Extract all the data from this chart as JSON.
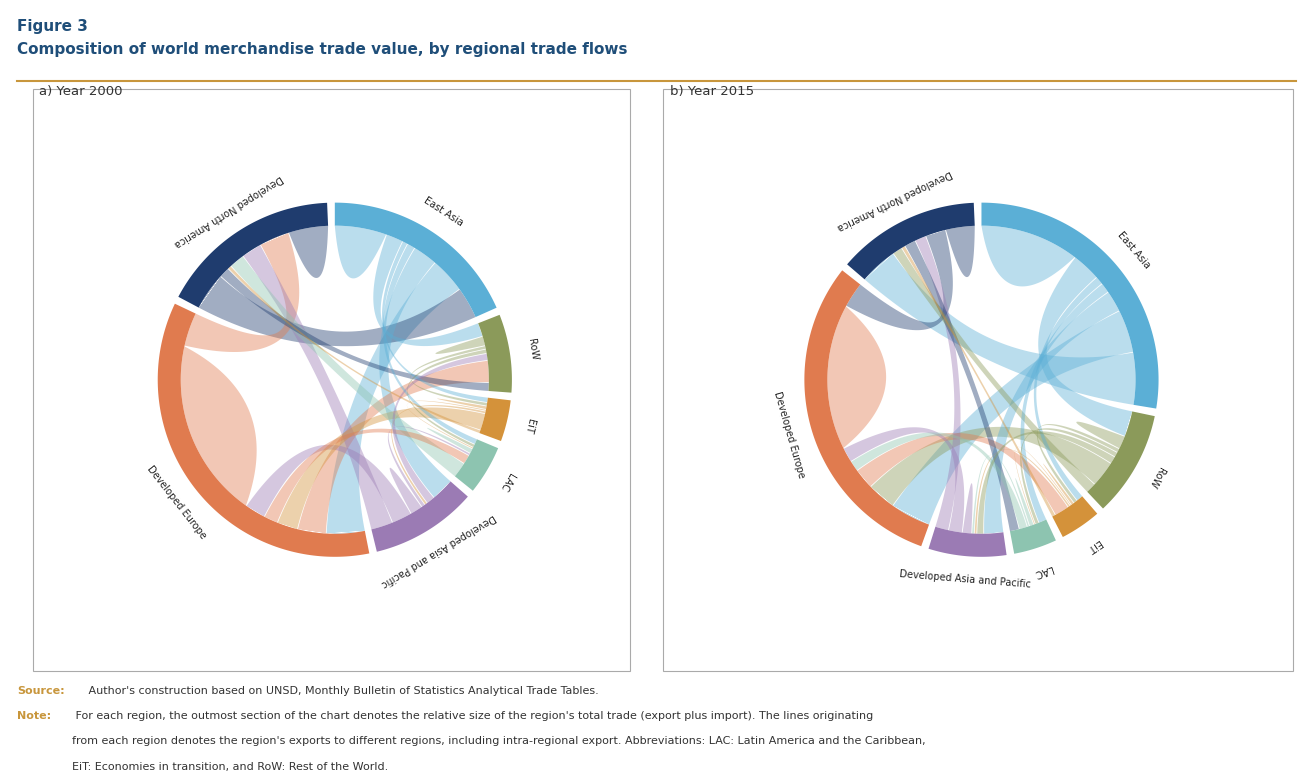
{
  "title_line1": "Figure 3",
  "title_line2": "Composition of world merchandise trade value, by regional trade flows",
  "subtitle_a": "a) Year 2000",
  "subtitle_b": "b) Year 2015",
  "source_label": "Source:",
  "source_body": " Author's construction based on UNSD, Monthly Bulletin of Statistics Analytical Trade Tables.",
  "note_label": "Note:",
  "note_body": " For each region, the outmost section of the chart denotes the relative size of the region's total trade (export plus import). The lines originating\nfrom each region denotes the region's exports to different regions, including intra-regional export. Abbreviations: LAC: Latin America and the Caribbean,\nEiT: Economies in transition, and RoW: Rest of the World.",
  "regions": [
    "East Asia",
    "RoW",
    "EiT",
    "LAC",
    "Developed Asia and Pacific",
    "Developed Europe",
    "Developed North America"
  ],
  "colors": {
    "East Asia": "#5BAFD6",
    "RoW": "#8B9A5A",
    "EiT": "#D4923A",
    "LAC": "#8DC4B0",
    "Developed Asia and Pacific": "#9B7BB4",
    "Developed Europe": "#E07B4F",
    "Developed North America": "#1F3C6E"
  },
  "year2000": {
    "arc_fracs": {
      "East Asia": 0.185,
      "RoW": 0.072,
      "EiT": 0.038,
      "LAC": 0.045,
      "Developed Asia and Pacific": 0.098,
      "Developed Europe": 0.355,
      "Developed North America": 0.167
    },
    "flows": {
      "East Asia": {
        "East Asia": 0.056,
        "RoW": 0.018,
        "EiT": 0.005,
        "LAC": 0.008,
        "Developed Asia and Pacific": 0.026,
        "Developed Europe": 0.038,
        "Developed North America": 0.034
      },
      "RoW": {
        "East Asia": 0.015,
        "RoW": 0.01,
        "EiT": 0.003,
        "LAC": 0.004,
        "Developed Asia and Pacific": 0.007,
        "Developed Europe": 0.024,
        "Developed North America": 0.009
      },
      "EiT": {
        "East Asia": 0.005,
        "RoW": 0.003,
        "EiT": 0.003,
        "LAC": 0.001,
        "Developed Asia and Pacific": 0.002,
        "Developed Europe": 0.018,
        "Developed North America": 0.003
      },
      "LAC": {
        "East Asia": 0.006,
        "RoW": 0.003,
        "EiT": 0.001,
        "LAC": 0.005,
        "Developed Asia and Pacific": 0.002,
        "Developed Europe": 0.01,
        "Developed North America": 0.018
      },
      "Developed Asia and Pacific": {
        "East Asia": 0.023,
        "RoW": 0.008,
        "EiT": 0.002,
        "LAC": 0.003,
        "Developed Asia and Pacific": 0.012,
        "Developed Europe": 0.02,
        "Developed North America": 0.022
      },
      "Developed Europe": {
        "East Asia": 0.034,
        "RoW": 0.025,
        "EiT": 0.018,
        "LAC": 0.012,
        "Developed Asia and Pacific": 0.018,
        "Developed Europe": 0.16,
        "Developed North America": 0.03
      },
      "Developed North America": {
        "East Asia": 0.038,
        "RoW": 0.01,
        "EiT": 0.003,
        "LAC": 0.015,
        "Developed Asia and Pacific": 0.02,
        "Developed Europe": 0.03,
        "Developed North America": 0.04
      }
    }
  },
  "year2015": {
    "arc_fracs": {
      "East Asia": 0.28,
      "RoW": 0.098,
      "EiT": 0.038,
      "LAC": 0.04,
      "Developed Asia and Pacific": 0.072,
      "Developed Europe": 0.305,
      "Developed North America": 0.132
    },
    "flows": {
      "East Asia": {
        "East Asia": 0.105,
        "RoW": 0.03,
        "EiT": 0.008,
        "LAC": 0.01,
        "Developed Asia and Pacific": 0.022,
        "Developed Europe": 0.045,
        "Developed North America": 0.055
      },
      "RoW": {
        "East Asia": 0.03,
        "RoW": 0.015,
        "EiT": 0.004,
        "LAC": 0.005,
        "Developed Asia and Pacific": 0.008,
        "Developed Europe": 0.03,
        "Developed North America": 0.012
      },
      "EiT": {
        "East Asia": 0.008,
        "RoW": 0.004,
        "EiT": 0.003,
        "LAC": 0.001,
        "Developed Asia and Pacific": 0.002,
        "Developed Europe": 0.018,
        "Developed North America": 0.004
      },
      "LAC": {
        "East Asia": 0.01,
        "RoW": 0.004,
        "EiT": 0.001,
        "LAC": 0.005,
        "Developed Asia and Pacific": 0.002,
        "Developed Europe": 0.01,
        "Developed North America": 0.012
      },
      "Developed Asia and Pacific": {
        "East Asia": 0.022,
        "RoW": 0.007,
        "EiT": 0.002,
        "LAC": 0.002,
        "Developed Asia and Pacific": 0.01,
        "Developed Europe": 0.015,
        "Developed North America": 0.015
      },
      "Developed Europe": {
        "East Asia": 0.04,
        "RoW": 0.028,
        "EiT": 0.02,
        "LAC": 0.01,
        "Developed Asia and Pacific": 0.014,
        "Developed Europe": 0.145,
        "Developed North America": 0.025
      },
      "Developed North America": {
        "East Asia": 0.05,
        "RoW": 0.012,
        "EiT": 0.004,
        "LAC": 0.014,
        "Developed Asia and Pacific": 0.014,
        "Developed Europe": 0.026,
        "Developed North America": 0.038
      }
    }
  },
  "bg_color": "#FFFFFF",
  "title_color": "#1F4E79",
  "separator_color": "#C8963C",
  "source_color": "#C8963C",
  "text_color": "#333333"
}
